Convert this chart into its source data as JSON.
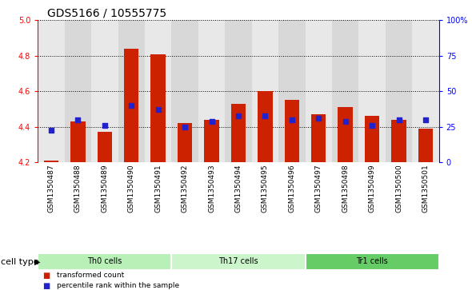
{
  "title": "GDS5166 / 10555775",
  "samples": [
    "GSM1350487",
    "GSM1350488",
    "GSM1350489",
    "GSM1350490",
    "GSM1350491",
    "GSM1350492",
    "GSM1350493",
    "GSM1350494",
    "GSM1350495",
    "GSM1350496",
    "GSM1350497",
    "GSM1350498",
    "GSM1350499",
    "GSM1350500",
    "GSM1350501"
  ],
  "transformed_count": [
    4.21,
    4.43,
    4.37,
    4.84,
    4.81,
    4.42,
    4.44,
    4.53,
    4.6,
    4.55,
    4.47,
    4.51,
    4.46,
    4.44,
    4.39
  ],
  "percentile_rank": [
    4.38,
    4.44,
    4.41,
    4.52,
    4.5,
    4.4,
    4.43,
    4.46,
    4.46,
    4.44,
    4.45,
    4.43,
    4.41,
    4.44,
    4.44
  ],
  "cell_groups": [
    {
      "label": "Th0 cells",
      "start": 0,
      "end": 5,
      "color": "#b8f0b8"
    },
    {
      "label": "Th17 cells",
      "start": 5,
      "end": 10,
      "color": "#ccf5cc"
    },
    {
      "label": "Tr1 cells",
      "start": 10,
      "end": 15,
      "color": "#66cc66"
    }
  ],
  "ylim_left": [
    4.2,
    5.0
  ],
  "ylim_right": [
    0,
    100
  ],
  "yticks_left": [
    4.2,
    4.4,
    4.6,
    4.8,
    5.0
  ],
  "yticks_right": [
    0,
    25,
    50,
    75,
    100
  ],
  "ytick_labels_right": [
    "0",
    "25",
    "50",
    "75",
    "100%"
  ],
  "bar_color": "#cc2200",
  "dot_color": "#2222cc",
  "bar_bottom": 4.2,
  "col_bg_odd": "#d8d8d8",
  "col_bg_even": "#e8e8e8",
  "cell_type_label": "cell type",
  "legend_bar_label": "transformed count",
  "legend_dot_label": "percentile rank within the sample",
  "title_fontsize": 10,
  "tick_fontsize": 7,
  "label_fontsize": 8
}
